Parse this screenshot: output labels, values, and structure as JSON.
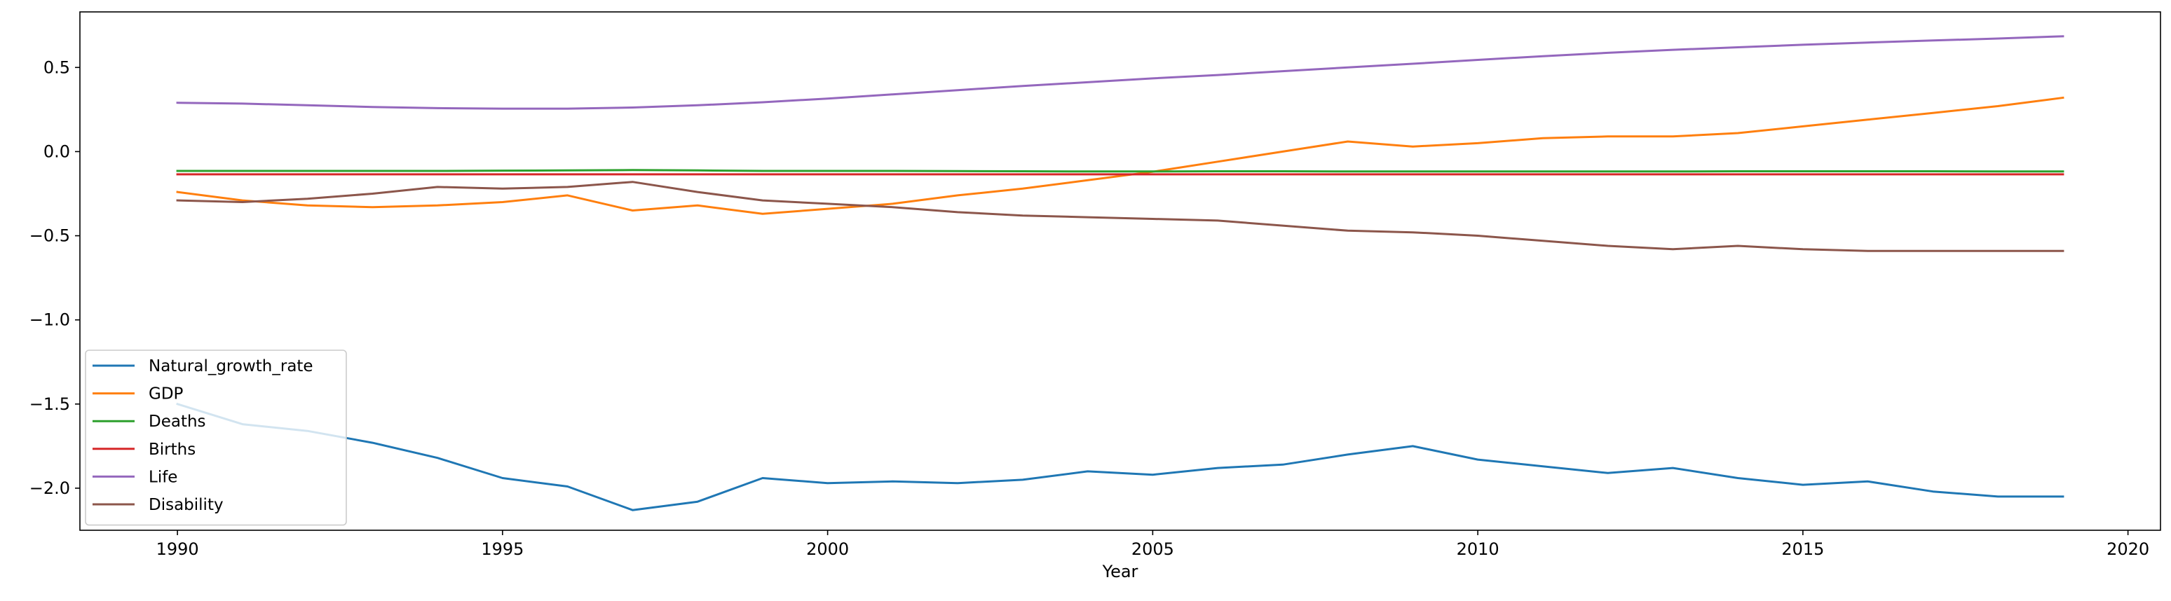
{
  "chart_data": {
    "type": "line",
    "title": "",
    "xlabel": "Year",
    "ylabel": "",
    "xlim": [
      1988.5,
      2020.5
    ],
    "ylim": [
      -2.25,
      0.83
    ],
    "xticks": [
      1990,
      1995,
      2000,
      2005,
      2010,
      2015,
      2020
    ],
    "yticks": [
      0.5,
      0.0,
      -0.5,
      -1.0,
      -1.5,
      -2.0
    ],
    "ytick_labels": [
      "0.5",
      "0.0",
      "−0.5",
      "−1.0",
      "−1.5",
      "−2.0"
    ],
    "grid": false,
    "legend_position": "lower-left",
    "x": [
      1990,
      1991,
      1992,
      1993,
      1994,
      1995,
      1996,
      1997,
      1998,
      1999,
      2000,
      2001,
      2002,
      2003,
      2004,
      2005,
      2006,
      2007,
      2008,
      2009,
      2010,
      2011,
      2012,
      2013,
      2014,
      2015,
      2016,
      2017,
      2018,
      2019
    ],
    "series": [
      {
        "name": "Natural_growth_rate",
        "color": "#1f77b4",
        "values": [
          -1.5,
          -1.62,
          -1.66,
          -1.73,
          -1.82,
          -1.94,
          -1.99,
          -2.13,
          -2.08,
          -1.94,
          -1.97,
          -1.96,
          -1.97,
          -1.95,
          -1.9,
          -1.92,
          -1.88,
          -1.86,
          -1.8,
          -1.75,
          -1.83,
          -1.87,
          -1.91,
          -1.88,
          -1.94,
          -1.98,
          -1.96,
          -2.02,
          -2.05,
          -2.05
        ]
      },
      {
        "name": "GDP",
        "color": "#ff7f0e",
        "values": [
          -0.24,
          -0.29,
          -0.32,
          -0.33,
          -0.32,
          -0.3,
          -0.26,
          -0.35,
          -0.32,
          -0.37,
          -0.34,
          -0.31,
          -0.26,
          -0.22,
          -0.17,
          -0.12,
          -0.06,
          0.0,
          0.06,
          0.03,
          0.05,
          0.08,
          0.09,
          0.09,
          0.11,
          0.15,
          0.19,
          0.23,
          0.27,
          0.32
        ]
      },
      {
        "name": "Deaths",
        "color": "#2ca02c",
        "values": [
          -0.115,
          -0.115,
          -0.115,
          -0.115,
          -0.115,
          -0.113,
          -0.112,
          -0.11,
          -0.112,
          -0.115,
          -0.115,
          -0.115,
          -0.116,
          -0.117,
          -0.118,
          -0.118,
          -0.117,
          -0.117,
          -0.118,
          -0.118,
          -0.118,
          -0.118,
          -0.118,
          -0.118,
          -0.117,
          -0.117,
          -0.117,
          -0.117,
          -0.118,
          -0.118
        ]
      },
      {
        "name": "Births",
        "color": "#d62728",
        "values": [
          -0.135,
          -0.135,
          -0.135,
          -0.135,
          -0.135,
          -0.135,
          -0.135,
          -0.135,
          -0.135,
          -0.135,
          -0.135,
          -0.135,
          -0.135,
          -0.135,
          -0.135,
          -0.135,
          -0.135,
          -0.135,
          -0.135,
          -0.135,
          -0.135,
          -0.135,
          -0.135,
          -0.135,
          -0.135,
          -0.135,
          -0.135,
          -0.135,
          -0.135,
          -0.135
        ]
      },
      {
        "name": "Life",
        "color": "#9467bd",
        "values": [
          0.29,
          0.285,
          0.275,
          0.265,
          0.258,
          0.255,
          0.255,
          0.262,
          0.275,
          0.293,
          0.315,
          0.34,
          0.365,
          0.39,
          0.412,
          0.435,
          0.455,
          0.478,
          0.5,
          0.522,
          0.545,
          0.567,
          0.587,
          0.605,
          0.62,
          0.635,
          0.648,
          0.66,
          0.672,
          0.685
        ]
      },
      {
        "name": "Disability",
        "color": "#8c564b",
        "values": [
          -0.29,
          -0.3,
          -0.28,
          -0.25,
          -0.21,
          -0.22,
          -0.21,
          -0.18,
          -0.24,
          -0.29,
          -0.31,
          -0.33,
          -0.36,
          -0.38,
          -0.39,
          -0.4,
          -0.41,
          -0.44,
          -0.47,
          -0.48,
          -0.5,
          -0.53,
          -0.56,
          -0.58,
          -0.56,
          -0.58,
          -0.59,
          -0.59,
          -0.59,
          -0.59
        ]
      }
    ]
  }
}
